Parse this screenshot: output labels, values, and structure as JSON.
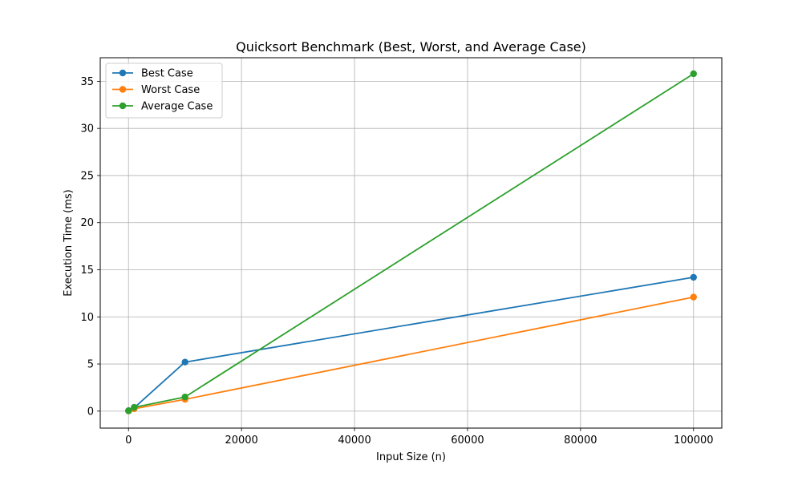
{
  "chart_data": {
    "type": "line",
    "title": "Quicksort Benchmark (Best, Worst, and Average Case)",
    "xlabel": "Input Size (n)",
    "ylabel": "Execution Time (ms)",
    "x": [
      10,
      1000,
      10000,
      100000
    ],
    "xlim": [
      -5000,
      105000
    ],
    "ylim": [
      -1.8,
      37.5
    ],
    "xticks": [
      0,
      20000,
      40000,
      60000,
      80000,
      100000
    ],
    "yticks": [
      0,
      5,
      10,
      15,
      20,
      25,
      30,
      35
    ],
    "grid": true,
    "legend_position": "top-left",
    "series": [
      {
        "name": "Best Case",
        "color": "#1f77b4",
        "values": [
          0.05,
          0.35,
          5.2,
          14.2
        ]
      },
      {
        "name": "Worst Case",
        "color": "#ff7f0e",
        "values": [
          0.02,
          0.25,
          1.25,
          12.1
        ]
      },
      {
        "name": "Average Case",
        "color": "#2ca02c",
        "values": [
          0.03,
          0.4,
          1.5,
          35.8
        ]
      }
    ]
  }
}
